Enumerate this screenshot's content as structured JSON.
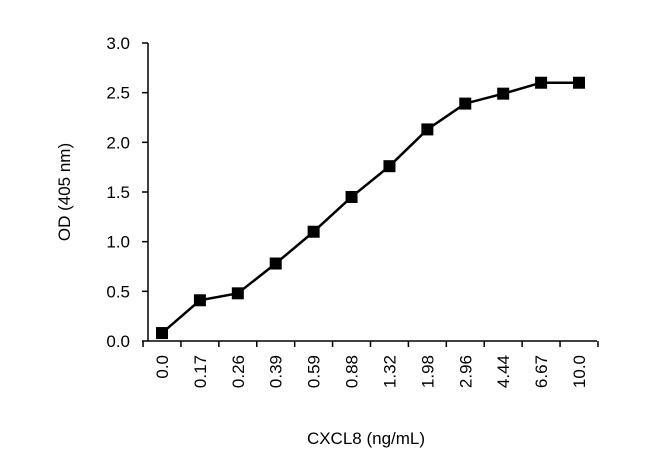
{
  "chart_data": {
    "type": "line",
    "title": "",
    "xlabel": "CXCL8 (ng/mL)",
    "ylabel": "OD (405 nm)",
    "categories": [
      "0.0",
      "0.17",
      "0.26",
      "0.39",
      "0.59",
      "0.88",
      "1.32",
      "1.98",
      "2.96",
      "4.44",
      "6.67",
      "10.0"
    ],
    "series": [
      {
        "values": [
          0.08,
          0.41,
          0.48,
          0.78,
          1.1,
          1.45,
          1.76,
          2.13,
          2.39,
          2.49,
          2.6,
          2.6
        ]
      }
    ],
    "yticks": [
      "0.0",
      "0.5",
      "1.0",
      "1.5",
      "2.0",
      "2.5",
      "3.0"
    ],
    "ylim": [
      0,
      3.0
    ],
    "marker": "square",
    "line_color": "#000000",
    "grid": false,
    "legend": "none"
  }
}
